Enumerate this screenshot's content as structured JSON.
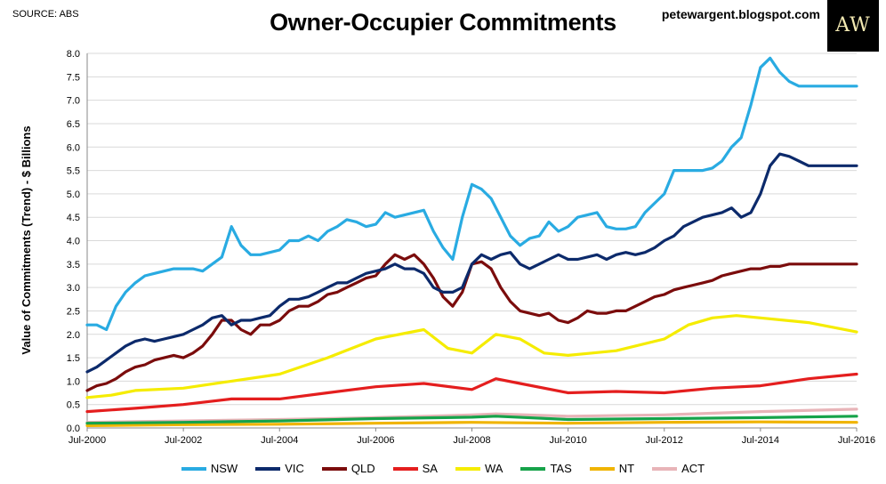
{
  "header": {
    "source": "SOURCE: ABS",
    "title": "Owner-Occupier Commitments",
    "blog": "petewargent.blogspot.com",
    "logo": "AW"
  },
  "chart_data": {
    "type": "line",
    "title": "Owner-Occupier Commitments",
    "ylabel": "Value of Commitments (Trend) - $ Billions",
    "xlabel": "",
    "ylim": [
      0,
      8
    ],
    "y_ticks": [
      "0.0",
      "0.5",
      "1.0",
      "1.5",
      "2.0",
      "2.5",
      "3.0",
      "3.5",
      "4.0",
      "4.5",
      "5.0",
      "5.5",
      "6.0",
      "6.5",
      "7.0",
      "7.5",
      "8.0"
    ],
    "xlim": [
      2000.5,
      2016.5
    ],
    "x_ticks": [
      {
        "x": 2000.5,
        "label": "Jul-2000"
      },
      {
        "x": 2002.5,
        "label": "Jul-2002"
      },
      {
        "x": 2004.5,
        "label": "Jul-2004"
      },
      {
        "x": 2006.5,
        "label": "Jul-2006"
      },
      {
        "x": 2008.5,
        "label": "Jul-2008"
      },
      {
        "x": 2010.5,
        "label": "Jul-2010"
      },
      {
        "x": 2012.5,
        "label": "Jul-2012"
      },
      {
        "x": 2014.5,
        "label": "Jul-2014"
      },
      {
        "x": 2016.5,
        "label": "Jul-2016"
      }
    ],
    "grid": true,
    "legend": "bottom",
    "series": [
      {
        "name": "NSW",
        "color": "#29abe2",
        "x": [
          2000.5,
          2000.7,
          2000.9,
          2001.1,
          2001.3,
          2001.5,
          2001.7,
          2001.9,
          2002.1,
          2002.3,
          2002.5,
          2002.7,
          2002.9,
          2003.1,
          2003.3,
          2003.5,
          2003.7,
          2003.9,
          2004.1,
          2004.3,
          2004.5,
          2004.7,
          2004.9,
          2005.1,
          2005.3,
          2005.5,
          2005.7,
          2005.9,
          2006.1,
          2006.3,
          2006.5,
          2006.7,
          2006.9,
          2007.1,
          2007.3,
          2007.5,
          2007.7,
          2007.9,
          2008.1,
          2008.3,
          2008.5,
          2008.7,
          2008.9,
          2009.1,
          2009.3,
          2009.5,
          2009.7,
          2009.9,
          2010.1,
          2010.3,
          2010.5,
          2010.7,
          2010.9,
          2011.1,
          2011.3,
          2011.5,
          2011.7,
          2011.9,
          2012.1,
          2012.3,
          2012.5,
          2012.7,
          2012.9,
          2013.1,
          2013.3,
          2013.5,
          2013.7,
          2013.9,
          2014.1,
          2014.3,
          2014.5,
          2014.7,
          2014.9,
          2015.1,
          2015.3,
          2015.5,
          2015.7,
          2015.9,
          2016.1,
          2016.3,
          2016.5
        ],
        "values": [
          2.2,
          2.2,
          2.1,
          2.6,
          2.9,
          3.1,
          3.25,
          3.3,
          3.35,
          3.4,
          3.4,
          3.4,
          3.35,
          3.5,
          3.65,
          4.3,
          3.9,
          3.7,
          3.7,
          3.75,
          3.8,
          4.0,
          4.0,
          4.1,
          4.0,
          4.2,
          4.3,
          4.45,
          4.4,
          4.3,
          4.35,
          4.6,
          4.5,
          4.55,
          4.6,
          4.65,
          4.2,
          3.85,
          3.6,
          4.5,
          5.2,
          5.1,
          4.9,
          4.5,
          4.1,
          3.9,
          4.05,
          4.1,
          4.4,
          4.2,
          4.3,
          4.5,
          4.55,
          4.6,
          4.3,
          4.25,
          4.25,
          4.3,
          4.6,
          4.8,
          5.0,
          5.5,
          5.5,
          5.5,
          5.5,
          5.55,
          5.7,
          6.0,
          6.2,
          6.9,
          7.7,
          7.9,
          7.6,
          7.4,
          7.3,
          7.3,
          7.3,
          7.3,
          7.3,
          7.3,
          7.3
        ]
      },
      {
        "name": "VIC",
        "color": "#0c2a6b",
        "x": [
          2000.5,
          2000.7,
          2000.9,
          2001.1,
          2001.3,
          2001.5,
          2001.7,
          2001.9,
          2002.1,
          2002.3,
          2002.5,
          2002.7,
          2002.9,
          2003.1,
          2003.3,
          2003.5,
          2003.7,
          2003.9,
          2004.1,
          2004.3,
          2004.5,
          2004.7,
          2004.9,
          2005.1,
          2005.3,
          2005.5,
          2005.7,
          2005.9,
          2006.1,
          2006.3,
          2006.5,
          2006.7,
          2006.9,
          2007.1,
          2007.3,
          2007.5,
          2007.7,
          2007.9,
          2008.1,
          2008.3,
          2008.5,
          2008.7,
          2008.9,
          2009.1,
          2009.3,
          2009.5,
          2009.7,
          2009.9,
          2010.1,
          2010.3,
          2010.5,
          2010.7,
          2010.9,
          2011.1,
          2011.3,
          2011.5,
          2011.7,
          2011.9,
          2012.1,
          2012.3,
          2012.5,
          2012.7,
          2012.9,
          2013.1,
          2013.3,
          2013.5,
          2013.7,
          2013.9,
          2014.1,
          2014.3,
          2014.5,
          2014.7,
          2014.9,
          2015.1,
          2015.3,
          2015.5,
          2015.7,
          2015.9,
          2016.1,
          2016.3,
          2016.5
        ],
        "values": [
          1.2,
          1.3,
          1.45,
          1.6,
          1.75,
          1.85,
          1.9,
          1.85,
          1.9,
          1.95,
          2.0,
          2.1,
          2.2,
          2.35,
          2.4,
          2.2,
          2.3,
          2.3,
          2.35,
          2.4,
          2.6,
          2.75,
          2.75,
          2.8,
          2.9,
          3.0,
          3.1,
          3.1,
          3.2,
          3.3,
          3.35,
          3.4,
          3.5,
          3.4,
          3.4,
          3.3,
          3.0,
          2.9,
          2.9,
          3.0,
          3.5,
          3.7,
          3.6,
          3.7,
          3.75,
          3.5,
          3.4,
          3.5,
          3.6,
          3.7,
          3.6,
          3.6,
          3.65,
          3.7,
          3.6,
          3.7,
          3.75,
          3.7,
          3.75,
          3.85,
          4.0,
          4.1,
          4.3,
          4.4,
          4.5,
          4.55,
          4.6,
          4.7,
          4.5,
          4.6,
          5.0,
          5.6,
          5.85,
          5.8,
          5.7,
          5.6,
          5.6,
          5.6,
          5.6,
          5.6,
          5.6
        ]
      },
      {
        "name": "QLD",
        "color": "#7b0c0c",
        "x": [
          2000.5,
          2000.7,
          2000.9,
          2001.1,
          2001.3,
          2001.5,
          2001.7,
          2001.9,
          2002.1,
          2002.3,
          2002.5,
          2002.7,
          2002.9,
          2003.1,
          2003.3,
          2003.5,
          2003.7,
          2003.9,
          2004.1,
          2004.3,
          2004.5,
          2004.7,
          2004.9,
          2005.1,
          2005.3,
          2005.5,
          2005.7,
          2005.9,
          2006.1,
          2006.3,
          2006.5,
          2006.7,
          2006.9,
          2007.1,
          2007.3,
          2007.5,
          2007.7,
          2007.9,
          2008.1,
          2008.3,
          2008.5,
          2008.7,
          2008.9,
          2009.1,
          2009.3,
          2009.5,
          2009.7,
          2009.9,
          2010.1,
          2010.3,
          2010.5,
          2010.7,
          2010.9,
          2011.1,
          2011.3,
          2011.5,
          2011.7,
          2011.9,
          2012.1,
          2012.3,
          2012.5,
          2012.7,
          2012.9,
          2013.1,
          2013.3,
          2013.5,
          2013.7,
          2013.9,
          2014.1,
          2014.3,
          2014.5,
          2014.7,
          2014.9,
          2015.1,
          2015.3,
          2015.5,
          2015.7,
          2015.9,
          2016.1,
          2016.3,
          2016.5
        ],
        "values": [
          0.8,
          0.9,
          0.95,
          1.05,
          1.2,
          1.3,
          1.35,
          1.45,
          1.5,
          1.55,
          1.5,
          1.6,
          1.75,
          2.0,
          2.3,
          2.3,
          2.1,
          2.0,
          2.2,
          2.2,
          2.3,
          2.5,
          2.6,
          2.6,
          2.7,
          2.85,
          2.9,
          3.0,
          3.1,
          3.2,
          3.25,
          3.5,
          3.7,
          3.6,
          3.7,
          3.5,
          3.2,
          2.8,
          2.6,
          2.9,
          3.5,
          3.55,
          3.4,
          3.0,
          2.7,
          2.5,
          2.45,
          2.4,
          2.45,
          2.3,
          2.25,
          2.35,
          2.5,
          2.45,
          2.45,
          2.5,
          2.5,
          2.6,
          2.7,
          2.8,
          2.85,
          2.95,
          3.0,
          3.05,
          3.1,
          3.15,
          3.25,
          3.3,
          3.35,
          3.4,
          3.4,
          3.45,
          3.45,
          3.5,
          3.5,
          3.5,
          3.5,
          3.5,
          3.5,
          3.5,
          3.5
        ]
      },
      {
        "name": "SA",
        "color": "#e41e1e",
        "x": [
          2000.5,
          2001.5,
          2002.5,
          2003.5,
          2004.5,
          2005.5,
          2006.5,
          2007.5,
          2008.5,
          2009.0,
          2009.5,
          2010.5,
          2011.5,
          2012.5,
          2013.5,
          2014.5,
          2015.5,
          2016.5
        ],
        "values": [
          0.35,
          0.42,
          0.5,
          0.62,
          0.62,
          0.75,
          0.88,
          0.95,
          0.82,
          1.05,
          0.95,
          0.75,
          0.78,
          0.75,
          0.85,
          0.9,
          1.05,
          1.15
        ]
      },
      {
        "name": "WA",
        "color": "#f5ec00",
        "x": [
          2000.5,
          2001.0,
          2001.5,
          2002.5,
          2003.5,
          2004.5,
          2005.5,
          2006.5,
          2007.5,
          2008.0,
          2008.5,
          2009.0,
          2009.5,
          2010.0,
          2010.5,
          2011.0,
          2011.5,
          2012.5,
          2013.0,
          2013.5,
          2014.0,
          2014.5,
          2015.5,
          2016.5
        ],
        "values": [
          0.65,
          0.7,
          0.8,
          0.85,
          1.0,
          1.15,
          1.5,
          1.9,
          2.1,
          1.7,
          1.6,
          2.0,
          1.9,
          1.6,
          1.55,
          1.6,
          1.65,
          1.9,
          2.2,
          2.35,
          2.4,
          2.35,
          2.25,
          2.05
        ]
      },
      {
        "name": "TAS",
        "color": "#16a34a",
        "x": [
          2000.5,
          2002.5,
          2004.5,
          2006.5,
          2008.5,
          2009.0,
          2010.5,
          2012.5,
          2014.5,
          2016.5
        ],
        "values": [
          0.1,
          0.12,
          0.15,
          0.2,
          0.23,
          0.25,
          0.18,
          0.2,
          0.22,
          0.25
        ]
      },
      {
        "name": "NT",
        "color": "#f0b400",
        "x": [
          2000.5,
          2002.5,
          2004.5,
          2006.5,
          2008.5,
          2010.5,
          2012.5,
          2014.5,
          2016.5
        ],
        "values": [
          0.05,
          0.07,
          0.08,
          0.1,
          0.12,
          0.1,
          0.12,
          0.13,
          0.12
        ]
      },
      {
        "name": "ACT",
        "color": "#e8b4b8",
        "x": [
          2000.5,
          2002.5,
          2004.5,
          2006.5,
          2008.5,
          2009.0,
          2010.5,
          2012.5,
          2014.5,
          2016.5
        ],
        "values": [
          0.12,
          0.15,
          0.18,
          0.22,
          0.28,
          0.3,
          0.25,
          0.28,
          0.35,
          0.4
        ]
      }
    ]
  }
}
